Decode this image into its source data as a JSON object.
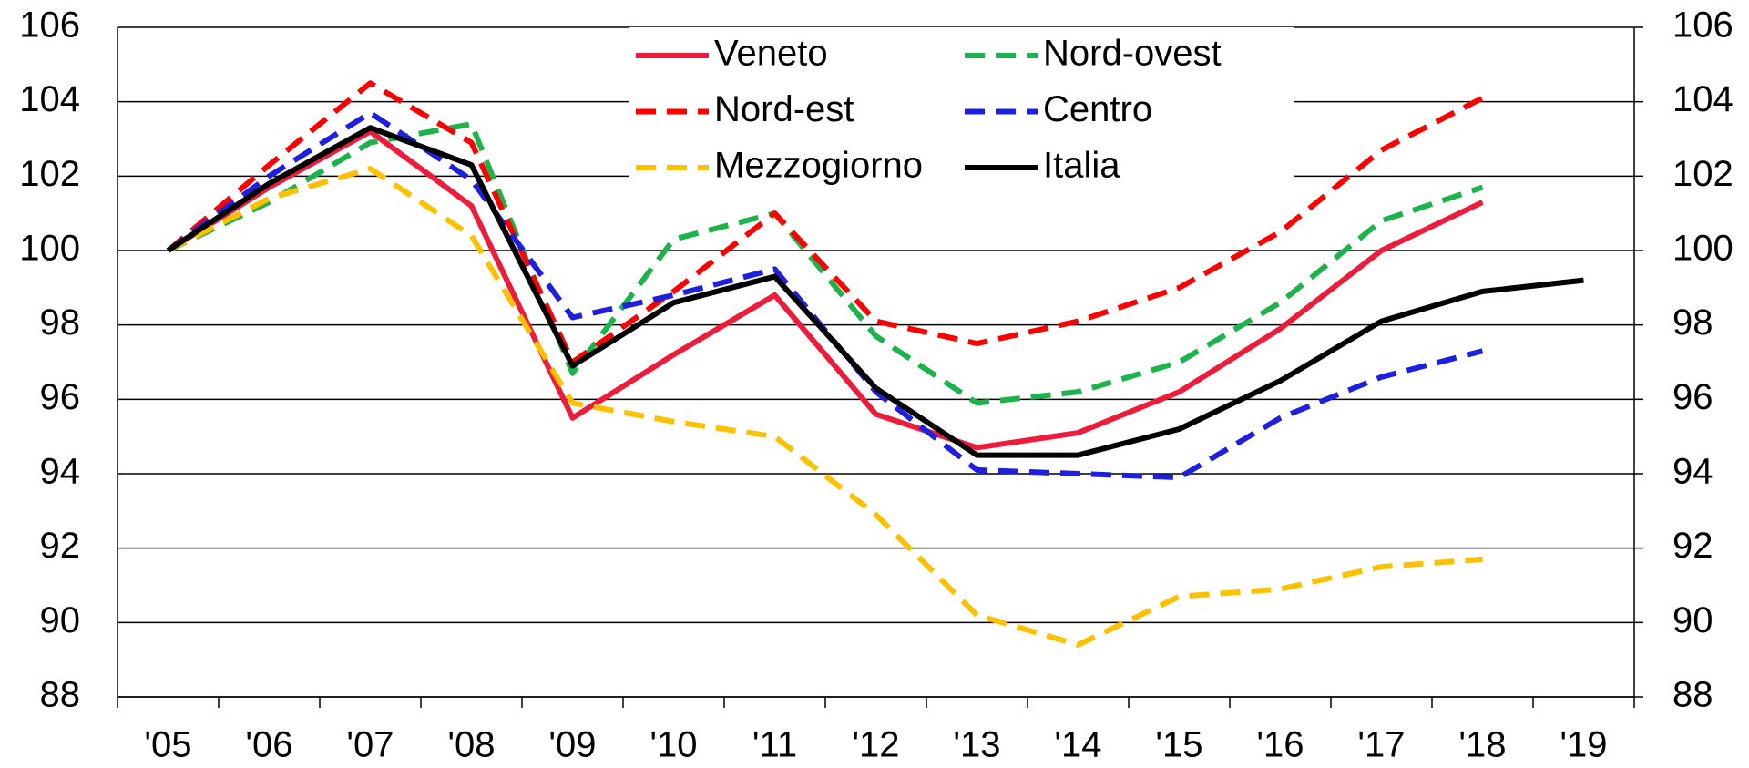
{
  "chart_data": {
    "type": "line",
    "categories": [
      "'05",
      "'06",
      "'07",
      "'08",
      "'09",
      "'10",
      "'11",
      "'12",
      "'13",
      "'14",
      "'15",
      "'16",
      "'17",
      "'18",
      "'19"
    ],
    "series": [
      {
        "name": "Veneto",
        "color": "#ee1c3a",
        "style": "solid",
        "values": [
          100,
          101.7,
          103.2,
          101.2,
          95.5,
          97.2,
          98.8,
          95.6,
          94.7,
          95.1,
          96.2,
          97.9,
          100.0,
          101.3,
          null
        ]
      },
      {
        "name": "Nord-ovest",
        "color": "#1db34b",
        "style": "dashed",
        "values": [
          100,
          101.3,
          102.9,
          103.4,
          96.7,
          100.3,
          101.0,
          97.7,
          95.9,
          96.2,
          97.0,
          98.6,
          100.8,
          101.7,
          null
        ]
      },
      {
        "name": "Nord-est",
        "color": "#ff0000",
        "style": "dashed",
        "values": [
          100,
          102.3,
          104.5,
          102.9,
          97.0,
          98.9,
          101.0,
          98.1,
          97.5,
          98.1,
          99.0,
          100.5,
          102.7,
          104.1,
          null
        ]
      },
      {
        "name": "Centro",
        "color": "#1f1fe0",
        "style": "dashed",
        "values": [
          100,
          102.0,
          103.7,
          101.9,
          98.2,
          98.8,
          99.5,
          96.2,
          94.1,
          94.0,
          93.9,
          95.5,
          96.6,
          97.3,
          null
        ]
      },
      {
        "name": "Mezzogiorno",
        "color": "#ffc000",
        "style": "dashed",
        "values": [
          100,
          101.4,
          102.2,
          100.4,
          95.9,
          95.4,
          95.0,
          92.9,
          90.2,
          89.4,
          90.7,
          90.9,
          91.5,
          91.7,
          null
        ]
      },
      {
        "name": "Italia",
        "color": "#000000",
        "style": "solid",
        "values": [
          100,
          101.8,
          103.3,
          102.3,
          96.9,
          98.6,
          99.3,
          96.3,
          94.5,
          94.5,
          95.2,
          96.5,
          98.1,
          98.9,
          99.2
        ]
      }
    ],
    "ylim": [
      88,
      106
    ],
    "yticks": [
      88,
      90,
      92,
      94,
      96,
      98,
      100,
      102,
      104,
      106
    ],
    "y2lim": [
      88,
      106
    ],
    "y2ticks": [
      88,
      90,
      92,
      94,
      96,
      98,
      100,
      102,
      104,
      106
    ],
    "grid": true,
    "legend": "top"
  }
}
